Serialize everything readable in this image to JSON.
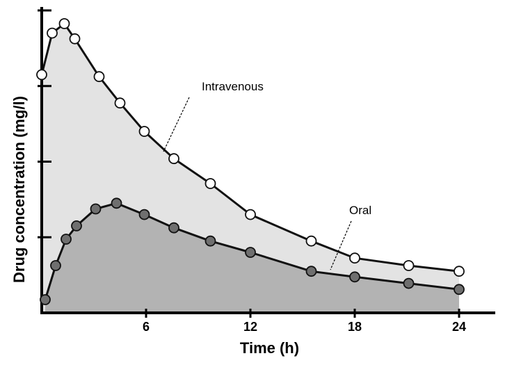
{
  "chart_data": {
    "type": "area",
    "title": "",
    "xlabel": "Time (h)",
    "ylabel": "Drug concentration (mg/l)",
    "xlim": [
      0,
      25
    ],
    "ylim": [
      0,
      8
    ],
    "x_ticks": [
      6,
      12,
      18,
      24
    ],
    "x_tick_labels": [
      "6",
      "12",
      "18",
      "24"
    ],
    "y_ticks": [
      2,
      4,
      6,
      8
    ],
    "y_tick_labels": [
      "",
      "",
      "",
      ""
    ],
    "grid": false,
    "legend": "none",
    "series": [
      {
        "name": "Intravenous",
        "marker": "open-circle",
        "fill_color": "#e3e3e3",
        "marker_fill": "#ffffff",
        "points": [
          [
            0.0,
            6.3
          ],
          [
            0.6,
            7.4
          ],
          [
            1.3,
            7.65
          ],
          [
            1.9,
            7.25
          ],
          [
            3.3,
            6.25
          ],
          [
            4.5,
            5.55
          ],
          [
            5.9,
            4.8
          ],
          [
            7.6,
            4.08
          ],
          [
            9.7,
            3.42
          ],
          [
            12.0,
            2.6
          ],
          [
            15.5,
            1.9
          ],
          [
            18.0,
            1.45
          ],
          [
            21.1,
            1.25
          ],
          [
            24.0,
            1.1
          ]
        ]
      },
      {
        "name": "Oral",
        "marker": "filled-circle",
        "fill_color": "#b3b3b3",
        "marker_fill": "#6f6f6f",
        "points": [
          [
            0.2,
            0.35
          ],
          [
            0.8,
            1.25
          ],
          [
            1.4,
            1.95
          ],
          [
            2.0,
            2.3
          ],
          [
            3.1,
            2.75
          ],
          [
            4.3,
            2.9
          ],
          [
            5.9,
            2.6
          ],
          [
            7.6,
            2.25
          ],
          [
            9.7,
            1.9
          ],
          [
            12.0,
            1.6
          ],
          [
            15.5,
            1.1
          ],
          [
            18.0,
            0.95
          ],
          [
            21.1,
            0.78
          ],
          [
            24.0,
            0.62
          ]
        ]
      }
    ],
    "annotations": [
      {
        "text": "Intravenous",
        "series": "Intravenous"
      },
      {
        "text": "Oral",
        "series": "Oral"
      }
    ]
  }
}
